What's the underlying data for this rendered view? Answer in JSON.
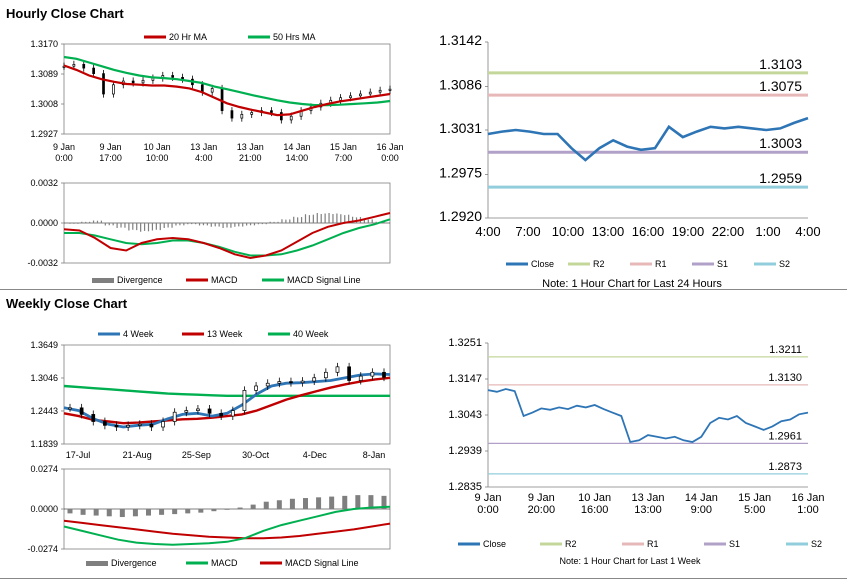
{
  "sections": {
    "hourly_title": "Hourly Close Chart",
    "weekly_title": "Weekly Close Chart"
  },
  "colors": {
    "red": "#c00000",
    "green": "#00b050",
    "blue": "#2e75b6",
    "gray": "#7f7f7f",
    "r2": "#c4d79b",
    "r1": "#e6b9b8",
    "s1": "#b1a0c7",
    "s2": "#92cddc",
    "black": "#000000"
  },
  "chart_data": [
    {
      "id": "hourly_price",
      "type": "line",
      "legend": [
        "20 Hr MA",
        "50 Hrs MA"
      ],
      "yticks": [
        "1.3170",
        "1.3089",
        "1.3008",
        "1.2927"
      ],
      "ylim": [
        1.2927,
        1.317
      ],
      "xticks": [
        [
          "9 Jan",
          "0:00"
        ],
        [
          "9 Jan",
          "17:00"
        ],
        [
          "10 Jan",
          "10:00"
        ],
        [
          "13 Jan",
          "4:00"
        ],
        [
          "13 Jan",
          "21:00"
        ],
        [
          "14 Jan",
          "14:00"
        ],
        [
          "15 Jan",
          "7:00"
        ],
        [
          "16 Jan",
          "0:00"
        ]
      ],
      "close": [
        1.311,
        1.3115,
        1.3105,
        1.309,
        1.3035,
        1.306,
        1.307,
        1.3065,
        1.3072,
        1.3078,
        1.3085,
        1.308,
        1.3075,
        1.306,
        1.304,
        1.305,
        1.299,
        1.297,
        1.298,
        1.2985,
        1.299,
        1.2985,
        1.2965,
        1.2975,
        1.299,
        1.3,
        1.301,
        1.3018,
        1.3025,
        1.303,
        1.3035,
        1.304,
        1.3045,
        1.3048
      ],
      "series": [
        {
          "name": "20 Hr MA",
          "values": [
            1.3112,
            1.31,
            1.3085,
            1.3075,
            1.3068,
            1.3062,
            1.306,
            1.3058,
            1.3058,
            1.3055,
            1.305,
            1.304,
            1.3025,
            1.301,
            1.3,
            1.2992,
            1.2985,
            1.2978,
            1.298,
            1.299,
            1.3,
            1.3008,
            1.3015,
            1.302,
            1.3025,
            1.303,
            1.3035
          ]
        },
        {
          "name": "50 Hrs MA",
          "values": [
            1.3135,
            1.313,
            1.312,
            1.311,
            1.31,
            1.3092,
            1.3085,
            1.308,
            1.3078,
            1.3075,
            1.307,
            1.3065,
            1.3055,
            1.3048,
            1.304,
            1.3032,
            1.3025,
            1.3018,
            1.3012,
            1.3008,
            1.3005,
            1.3005,
            1.3006,
            1.3008,
            1.301,
            1.3012,
            1.3016
          ]
        }
      ]
    },
    {
      "id": "hourly_macd",
      "type": "bar",
      "yticks": [
        "0.0032",
        "0.0000",
        "-0.0032"
      ],
      "ylim": [
        -0.0032,
        0.0032
      ],
      "legend": [
        "Divergence",
        "MACD",
        "MACD Signal Line"
      ],
      "divergence": [
        0,
        0.0001,
        0.0002,
        -0.0002,
        -0.0004,
        -0.0006,
        -0.0007,
        -0.0006,
        -0.0004,
        -0.0002,
        -0.0001,
        -0.0002,
        -0.0003,
        -0.0004,
        -0.0003,
        -0.0002,
        -0.0001,
        0.0001,
        0.0003,
        0.0005,
        0.0007,
        0.0008,
        0.0008,
        0.0007,
        0.0005,
        0.0003,
        0.0001
      ],
      "series": [
        {
          "name": "MACD",
          "values": [
            -0.0005,
            -0.0006,
            -0.0012,
            -0.002,
            -0.0022,
            -0.0016,
            -0.0013,
            -0.0012,
            -0.0013,
            -0.0016,
            -0.002,
            -0.0025,
            -0.0028,
            -0.0026,
            -0.0022,
            -0.0015,
            -0.0008,
            -0.0003,
            0.0,
            0.0002,
            0.0005,
            0.0008
          ]
        },
        {
          "name": "MACD Signal Line",
          "values": [
            -0.0008,
            -0.0008,
            -0.001,
            -0.0013,
            -0.0016,
            -0.0017,
            -0.0016,
            -0.0014,
            -0.0014,
            -0.0016,
            -0.0019,
            -0.0023,
            -0.0026,
            -0.0026,
            -0.0025,
            -0.0022,
            -0.0018,
            -0.0013,
            -0.0008,
            -0.0004,
            -0.0001,
            0.0003
          ]
        }
      ]
    },
    {
      "id": "hourly_24h",
      "type": "line",
      "yticks": [
        "1.3142",
        "1.3086",
        "1.3031",
        "1.2975",
        "1.2920"
      ],
      "ylim": [
        1.292,
        1.3142
      ],
      "xticks": [
        "4:00",
        "7:00",
        "10:00",
        "13:00",
        "16:00",
        "19:00",
        "22:00",
        "1:00",
        "4:00"
      ],
      "close": [
        1.3026,
        1.3029,
        1.3031,
        1.3029,
        1.3026,
        1.3026,
        1.3008,
        1.2993,
        1.3008,
        1.3018,
        1.301,
        1.3006,
        1.3008,
        1.3035,
        1.3022,
        1.3029,
        1.3035,
        1.3033,
        1.3035,
        1.3033,
        1.3031,
        1.3033,
        1.304,
        1.3046
      ],
      "levels": [
        {
          "name": "R2",
          "value": 1.3103,
          "label": "1.3103"
        },
        {
          "name": "R1",
          "value": 1.3075,
          "label": "1.3075"
        },
        {
          "name": "S1",
          "value": 1.3003,
          "label": "1.3003"
        },
        {
          "name": "S2",
          "value": 1.2959,
          "label": "1.2959"
        }
      ],
      "legend": [
        "Close",
        "R2",
        "R1",
        "S1",
        "S2"
      ],
      "note": "Note: 1 Hour Chart for Last 24 Hours"
    },
    {
      "id": "weekly_price",
      "type": "line",
      "legend": [
        "4 Week",
        "13 Week",
        "40 Week"
      ],
      "yticks": [
        "1.3649",
        "1.3046",
        "1.2443",
        "1.1839"
      ],
      "ylim": [
        1.1839,
        1.3649
      ],
      "xticks": [
        "17-Jul",
        "21-Aug",
        "25-Sep",
        "30-Oct",
        "4-Dec",
        "8-Jan"
      ],
      "close": [
        1.25,
        1.238,
        1.225,
        1.218,
        1.215,
        1.218,
        1.22,
        1.215,
        1.225,
        1.242,
        1.245,
        1.248,
        1.24,
        1.235,
        1.245,
        1.282,
        1.29,
        1.295,
        1.298,
        1.296,
        1.299,
        1.305,
        1.315,
        1.325,
        1.3,
        1.308,
        1.315,
        1.306
      ],
      "series": [
        {
          "name": "4 Week",
          "values": [
            1.25,
            1.245,
            1.23,
            1.22,
            1.215,
            1.218,
            1.22,
            1.23,
            1.238,
            1.24,
            1.235,
            1.24,
            1.255,
            1.275,
            1.29,
            1.295,
            1.296,
            1.298,
            1.3,
            1.305,
            1.31,
            1.312,
            1.311
          ]
        },
        {
          "name": "13 Week",
          "values": [
            1.24,
            1.235,
            1.228,
            1.225,
            1.222,
            1.223,
            1.225,
            1.227,
            1.229,
            1.23,
            1.232,
            1.235,
            1.238,
            1.245,
            1.255,
            1.265,
            1.273,
            1.28,
            1.287,
            1.293,
            1.298,
            1.302,
            1.305
          ]
        },
        {
          "name": "40 Week",
          "values": [
            1.29,
            1.288,
            1.286,
            1.284,
            1.282,
            1.28,
            1.278,
            1.276,
            1.275,
            1.274,
            1.273,
            1.272,
            1.272,
            1.272,
            1.272,
            1.272,
            1.272,
            1.272,
            1.272,
            1.272,
            1.272,
            1.272,
            1.272
          ]
        }
      ]
    },
    {
      "id": "weekly_macd",
      "type": "bar",
      "yticks": [
        "0.0274",
        "0.0000",
        "-0.0274"
      ],
      "ylim": [
        -0.0274,
        0.0274
      ],
      "legend": [
        "Divergence",
        "MACD",
        "MACD Signal Line"
      ],
      "divergence": [
        -0.003,
        -0.004,
        -0.0045,
        -0.005,
        -0.0055,
        -0.005,
        -0.0045,
        -0.004,
        -0.0035,
        -0.003,
        -0.0025,
        -0.0015,
        -0.0005,
        0.001,
        0.003,
        0.005,
        0.006,
        0.007,
        0.0075,
        0.008,
        0.0085,
        0.009,
        0.0095,
        0.0095,
        0.009
      ],
      "series": [
        {
          "name": "MACD",
          "values": [
            -0.012,
            -0.015,
            -0.018,
            -0.021,
            -0.023,
            -0.024,
            -0.0245,
            -0.024,
            -0.0235,
            -0.0225,
            -0.02,
            -0.015,
            -0.011,
            -0.008,
            -0.005,
            -0.002,
            0.0,
            0.001,
            0.0015
          ]
        },
        {
          "name": "MACD Signal Line",
          "values": [
            -0.008,
            -0.0095,
            -0.011,
            -0.0125,
            -0.014,
            -0.0155,
            -0.017,
            -0.018,
            -0.019,
            -0.0195,
            -0.02,
            -0.02,
            -0.0195,
            -0.0185,
            -0.017,
            -0.0155,
            -0.014,
            -0.012,
            -0.01
          ]
        }
      ]
    },
    {
      "id": "weekly_1w",
      "type": "line",
      "yticks": [
        "1.3251",
        "1.3147",
        "1.3043",
        "1.2939",
        "1.2835"
      ],
      "ylim": [
        1.2835,
        1.3251
      ],
      "xticks": [
        [
          "9 Jan",
          "0:00"
        ],
        [
          "9 Jan",
          "20:00"
        ],
        [
          "10 Jan",
          "16:00"
        ],
        [
          "13 Jan",
          "13:00"
        ],
        [
          "14 Jan",
          "9:00"
        ],
        [
          "15 Jan",
          "5:00"
        ],
        [
          "16 Jan",
          "1:00"
        ]
      ],
      "close": [
        1.3115,
        1.311,
        1.3118,
        1.3112,
        1.304,
        1.305,
        1.3062,
        1.3058,
        1.3065,
        1.306,
        1.307,
        1.3065,
        1.3072,
        1.306,
        1.305,
        1.304,
        1.2965,
        1.297,
        1.2985,
        1.298,
        1.2975,
        1.298,
        1.297,
        1.2965,
        1.298,
        1.302,
        1.3035,
        1.303,
        1.304,
        1.302,
        1.301,
        1.3,
        1.301,
        1.3025,
        1.303,
        1.3045,
        1.305
      ],
      "levels": [
        {
          "name": "R2",
          "value": 1.3211,
          "label": "1.3211"
        },
        {
          "name": "R1",
          "value": 1.313,
          "label": "1.3130"
        },
        {
          "name": "S1",
          "value": 1.2961,
          "label": "1.2961"
        },
        {
          "name": "S2",
          "value": 1.2873,
          "label": "1.2873"
        }
      ],
      "legend": [
        "Close",
        "R2",
        "R1",
        "S1",
        "S2"
      ],
      "note": "Note: 1 Hour Chart for Last 1 Week"
    }
  ]
}
